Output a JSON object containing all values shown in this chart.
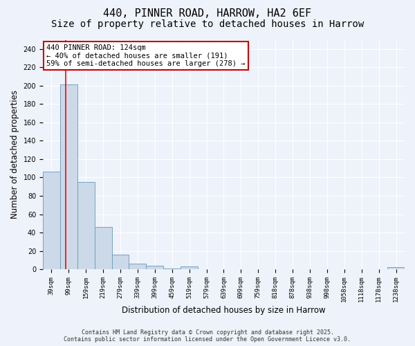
{
  "title_line1": "440, PINNER ROAD, HARROW, HA2 6EF",
  "title_line2": "Size of property relative to detached houses in Harrow",
  "xlabel": "Distribution of detached houses by size in Harrow",
  "ylabel": "Number of detached properties",
  "categories": [
    "39sqm",
    "99sqm",
    "159sqm",
    "219sqm",
    "279sqm",
    "339sqm",
    "399sqm",
    "459sqm",
    "519sqm",
    "579sqm",
    "639sqm",
    "699sqm",
    "759sqm",
    "818sqm",
    "878sqm",
    "938sqm",
    "998sqm",
    "1058sqm",
    "1118sqm",
    "1178sqm",
    "1238sqm"
  ],
  "values": [
    106,
    201,
    95,
    46,
    16,
    6,
    4,
    1,
    3,
    0,
    0,
    0,
    0,
    0,
    0,
    0,
    0,
    0,
    0,
    0,
    2
  ],
  "bar_color": "#ccd9e8",
  "bar_edge_color": "#6699bb",
  "background_color": "#eef2fa",
  "grid_color": "#ffffff",
  "red_line_x": 0.82,
  "annotation_title": "440 PINNER ROAD: 124sqm",
  "annotation_line1": "← 40% of detached houses are smaller (191)",
  "annotation_line2": "59% of semi-detached houses are larger (278) →",
  "annotation_box_color": "#ffffff",
  "annotation_box_edge": "#cc0000",
  "ylim": [
    0,
    250
  ],
  "yticks": [
    0,
    20,
    40,
    60,
    80,
    100,
    120,
    140,
    160,
    180,
    200,
    220,
    240
  ],
  "footer_line1": "Contains HM Land Registry data © Crown copyright and database right 2025.",
  "footer_line2": "Contains public sector information licensed under the Open Government Licence v3.0.",
  "title_fontsize": 11,
  "subtitle_fontsize": 10,
  "tick_fontsize": 6.5,
  "label_fontsize": 8.5,
  "footer_fontsize": 6,
  "ann_fontsize": 7.5
}
